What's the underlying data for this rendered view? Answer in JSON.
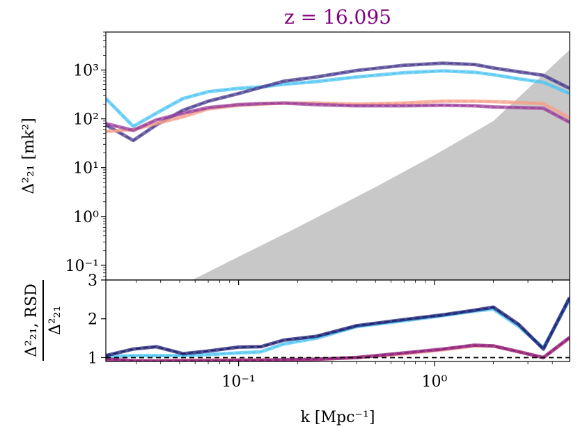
{
  "chart_data": [
    {
      "type": "line",
      "panel": "top",
      "title": "z = 16.095",
      "title_color": "#800080",
      "ylabel": "Δ²₂₁ [mk²]",
      "yscale": "log",
      "xscale": "log",
      "xlim": [
        0.021,
        4.9
      ],
      "ylim": [
        0.05,
        6000
      ],
      "ytick_labels": [
        "10⁻¹",
        "10⁰",
        "10¹",
        "10²",
        "10³"
      ],
      "ytick_values": [
        0.1,
        1,
        10,
        100,
        1000
      ],
      "shaded_region": {
        "color": "#c8c8c8",
        "x": [
          0.058,
          0.1,
          0.2,
          0.5,
          1.0,
          2.0,
          4.9
        ],
        "y_lower": [
          0.05,
          0.15,
          0.6,
          4,
          18,
          90,
          2600
        ]
      },
      "series": [
        {
          "name": "cyan",
          "color": "#4fc6f2",
          "x": [
            0.021,
            0.029,
            0.038,
            0.052,
            0.07,
            0.1,
            0.13,
            0.17,
            0.25,
            0.4,
            0.7,
            1.1,
            1.6,
            2.0,
            2.7,
            3.6,
            4.9
          ],
          "y": [
            260,
            70,
            130,
            260,
            360,
            420,
            450,
            510,
            580,
            720,
            880,
            960,
            900,
            800,
            660,
            560,
            330
          ]
        },
        {
          "name": "navy",
          "color": "#4b3d8f",
          "x": [
            0.021,
            0.029,
            0.038,
            0.052,
            0.07,
            0.1,
            0.13,
            0.17,
            0.25,
            0.4,
            0.7,
            1.1,
            1.6,
            2.0,
            2.7,
            3.6,
            4.9
          ],
          "y": [
            75,
            36,
            75,
            150,
            230,
            330,
            440,
            590,
            720,
            980,
            1250,
            1380,
            1300,
            1100,
            920,
            780,
            420
          ]
        },
        {
          "name": "salmon",
          "color": "#f7a08a",
          "x": [
            0.021,
            0.029,
            0.038,
            0.052,
            0.07,
            0.1,
            0.13,
            0.17,
            0.25,
            0.4,
            0.7,
            1.1,
            1.6,
            2.0,
            2.7,
            3.6,
            4.9
          ],
          "y": [
            55,
            60,
            80,
            110,
            160,
            190,
            200,
            210,
            210,
            200,
            210,
            230,
            230,
            225,
            215,
            205,
            105
          ]
        },
        {
          "name": "purple",
          "color": "#9b3f9b",
          "x": [
            0.021,
            0.029,
            0.038,
            0.052,
            0.07,
            0.1,
            0.13,
            0.17,
            0.25,
            0.4,
            0.7,
            1.1,
            1.6,
            2.0,
            2.7,
            3.6,
            4.9
          ],
          "y": [
            80,
            58,
            95,
            130,
            170,
            195,
            205,
            210,
            195,
            185,
            185,
            190,
            185,
            175,
            170,
            165,
            85
          ]
        }
      ]
    },
    {
      "type": "line",
      "panel": "bottom",
      "ylabel_numerator": "Δ²₂₁, RSD",
      "ylabel_denominator": "Δ²₂₁",
      "xlabel": "k [Mpc⁻¹]",
      "xscale": "log",
      "xlim": [
        0.021,
        4.9
      ],
      "ylim": [
        0.9,
        3.0
      ],
      "ytick_labels": [
        "1",
        "2",
        "3"
      ],
      "ytick_values": [
        1,
        2,
        3
      ],
      "xtick_labels": [
        "10⁻¹",
        "10⁰"
      ],
      "xtick_values": [
        0.1,
        1
      ],
      "reference_line": {
        "y": 1,
        "style": "dashed",
        "color": "#000000"
      },
      "series": [
        {
          "name": "cyan",
          "color": "#4fc6f2",
          "x": [
            0.021,
            0.029,
            0.038,
            0.052,
            0.07,
            0.1,
            0.13,
            0.17,
            0.25,
            0.4,
            0.7,
            1.1,
            1.6,
            2.0,
            2.7,
            3.6,
            4.9
          ],
          "y": [
            1.02,
            1.05,
            1.05,
            1.05,
            1.08,
            1.12,
            1.15,
            1.35,
            1.5,
            1.8,
            1.95,
            2.08,
            2.2,
            2.25,
            1.8,
            1.25,
            2.5
          ]
        },
        {
          "name": "navy",
          "color": "#1a1a6e",
          "x": [
            0.021,
            0.029,
            0.038,
            0.052,
            0.07,
            0.1,
            0.13,
            0.17,
            0.25,
            0.4,
            0.7,
            1.1,
            1.6,
            2.0,
            2.7,
            3.6,
            4.9
          ],
          "y": [
            1.05,
            1.22,
            1.28,
            1.1,
            1.17,
            1.27,
            1.28,
            1.45,
            1.55,
            1.82,
            1.98,
            2.1,
            2.22,
            2.3,
            1.85,
            1.22,
            2.55
          ]
        },
        {
          "name": "salmon",
          "color": "#f7a08a",
          "x": [
            0.021,
            0.029,
            0.038,
            0.052,
            0.07,
            0.1,
            0.13,
            0.17,
            0.25,
            0.4,
            0.7,
            1.1,
            1.6,
            2.0,
            2.7,
            3.6,
            4.9
          ],
          "y": [
            0.95,
            0.92,
            0.92,
            0.93,
            0.93,
            0.94,
            0.94,
            0.94,
            0.96,
            1.0,
            1.1,
            1.2,
            1.3,
            1.3,
            1.15,
            1.0,
            1.5
          ]
        },
        {
          "name": "purple",
          "color": "#8b1a7e",
          "x": [
            0.021,
            0.029,
            0.038,
            0.052,
            0.07,
            0.1,
            0.13,
            0.17,
            0.25,
            0.4,
            0.7,
            1.1,
            1.6,
            2.0,
            2.7,
            3.6,
            4.9
          ],
          "y": [
            0.96,
            0.92,
            0.91,
            0.92,
            0.92,
            0.93,
            0.93,
            0.94,
            0.96,
            1.0,
            1.12,
            1.22,
            1.32,
            1.3,
            1.15,
            1.0,
            1.52
          ]
        }
      ]
    }
  ]
}
